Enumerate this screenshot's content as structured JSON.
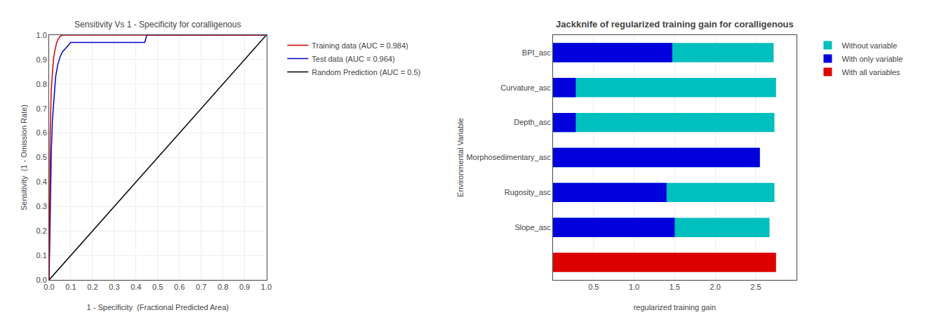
{
  "chart_data": [
    {
      "type": "line",
      "title": "Sensitivity Vs 1 - Specificity for coralligenous",
      "x_label": "1 - Specificity  (Fractional Predicted Area)",
      "y_label": "Sensitivity  (1 - Omission Rate)",
      "series": [
        {
          "name": "Training data (AUC = 0.984)",
          "color": "#cc0000",
          "x": [
            0,
            0.005,
            0.01,
            0.015,
            0.02,
            0.025,
            0.03,
            0.035,
            0.04,
            0.045,
            0.05,
            0.06,
            0.07,
            0.08,
            0.1,
            0.15,
            1.0
          ],
          "values": [
            0,
            0.6,
            0.78,
            0.85,
            0.9,
            0.93,
            0.95,
            0.97,
            0.98,
            0.99,
            0.995,
            1.0,
            1.0,
            1.0,
            1.0,
            1.0,
            1.0
          ]
        },
        {
          "name": "Test data (AUC = 0.964)",
          "color": "#0000cc",
          "x": [
            0,
            0.005,
            0.01,
            0.015,
            0.02,
            0.03,
            0.04,
            0.05,
            0.06,
            0.07,
            0.08,
            0.09,
            0.1,
            0.43,
            0.44,
            0.45,
            1.0
          ],
          "values": [
            0,
            0.3,
            0.52,
            0.65,
            0.72,
            0.83,
            0.88,
            0.91,
            0.93,
            0.94,
            0.95,
            0.96,
            0.97,
            0.97,
            0.97,
            1.0,
            1.0
          ]
        },
        {
          "name": "Random Prediction (AUC = 0.5)",
          "color": "#000000",
          "x": [
            0,
            1
          ],
          "values": [
            0,
            1
          ]
        }
      ],
      "xlim": [
        0,
        1
      ],
      "xticks": [
        {
          "value": 0,
          "label": "0.0"
        },
        0.1,
        0.2,
        0.3,
        0.4,
        0.5,
        0.6,
        0.7,
        0.8,
        0.9,
        {
          "value": 1,
          "label": "1.0"
        }
      ],
      "ylim": [
        0,
        1
      ],
      "yticks": [
        {
          "value": 0,
          "label": "0.0"
        },
        0.1,
        0.2,
        0.3,
        0.4,
        0.5,
        0.6,
        0.7,
        0.8,
        0.9,
        {
          "value": 1,
          "label": "1.0"
        }
      ],
      "grid": true,
      "legend": "right"
    },
    {
      "type": "bar",
      "orientation": "horizontal",
      "stacked": false,
      "title": "Jackknife of regularized training gain for coralligenous",
      "x_label": "regularized training gain",
      "y_label": "Environmental Variable",
      "categories": [
        "BPI_asc",
        "Curvature_asc",
        "Depth_asc",
        "Morphosedimentary_asc",
        "Rugosity_asc",
        "Slope_asc",
        null
      ],
      "series": [
        {
          "name": "Without variable",
          "color": "#00bfbf",
          "values": [
            2.72,
            2.75,
            2.73,
            2.55,
            2.73,
            2.67,
            null
          ]
        },
        {
          "name": "With only variable",
          "color": "#0000dd",
          "values": [
            1.47,
            0.28,
            0.28,
            2.55,
            1.4,
            1.5,
            null
          ]
        },
        {
          "name": "With all variables",
          "color": "#dd0000",
          "values": [
            null,
            null,
            null,
            null,
            null,
            null,
            2.75
          ]
        }
      ],
      "xlim": [
        0,
        3.0
      ],
      "xticks": [
        0.5,
        {
          "value": 1.0,
          "label": "1.0"
        },
        1.5,
        {
          "value": 2.0,
          "label": "2.0"
        },
        2.5
      ],
      "grid": "x",
      "legend": "right"
    }
  ]
}
